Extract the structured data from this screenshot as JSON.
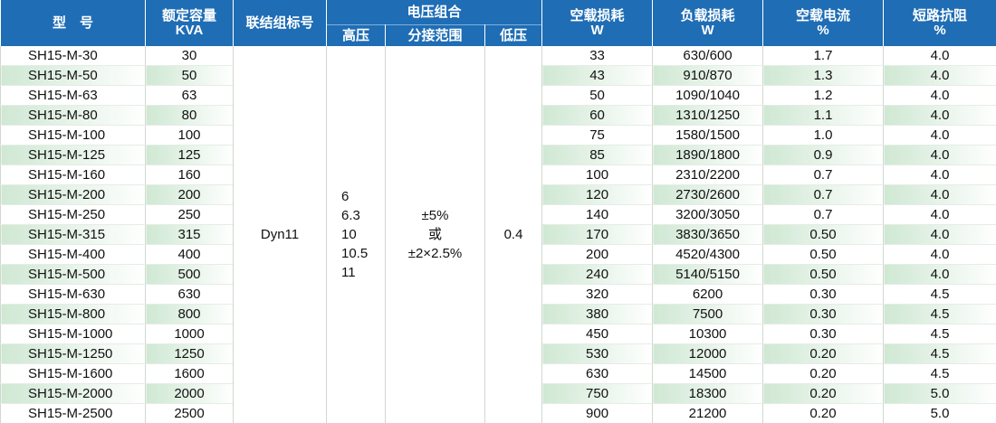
{
  "header": {
    "model": "型　号",
    "capacity": {
      "name": "额定容量",
      "unit": "KVA"
    },
    "connection": "联结组标号",
    "voltage": {
      "title": "电压组合",
      "high": "高压",
      "tap": "分接范围",
      "low": "低压"
    },
    "no_load_loss": {
      "name": "空载损耗",
      "unit": "W"
    },
    "load_loss": {
      "name": "负载损耗",
      "unit": "W"
    },
    "no_load_current": {
      "name": "空载电流",
      "unit": "%"
    },
    "impedance": {
      "name": "短路抗阻",
      "unit": "%"
    }
  },
  "merged": {
    "connection": "Dyn11",
    "high": [
      "6",
      "6.3",
      "10",
      "10.5",
      "11"
    ],
    "tap": [
      "±5%",
      "或",
      "±2×2.5%"
    ],
    "low": "0.4"
  },
  "rows": [
    [
      "SH15-M-30",
      "30",
      "33",
      "630/600",
      "1.7",
      "4.0"
    ],
    [
      "SH15-M-50",
      "50",
      "43",
      "910/870",
      "1.3",
      "4.0"
    ],
    [
      "SH15-M-63",
      "63",
      "50",
      "1090/1040",
      "1.2",
      "4.0"
    ],
    [
      "SH15-M-80",
      "80",
      "60",
      "1310/1250",
      "1.1",
      "4.0"
    ],
    [
      "SH15-M-100",
      "100",
      "75",
      "1580/1500",
      "1.0",
      "4.0"
    ],
    [
      "SH15-M-125",
      "125",
      "85",
      "1890/1800",
      "0.9",
      "4.0"
    ],
    [
      "SH15-M-160",
      "160",
      "100",
      "2310/2200",
      "0.7",
      "4.0"
    ],
    [
      "SH15-M-200",
      "200",
      "120",
      "2730/2600",
      "0.7",
      "4.0"
    ],
    [
      "SH15-M-250",
      "250",
      "140",
      "3200/3050",
      "0.7",
      "4.0"
    ],
    [
      "SH15-M-315",
      "315",
      "170",
      "3830/3650",
      "0.50",
      "4.0"
    ],
    [
      "SH15-M-400",
      "400",
      "200",
      "4520/4300",
      "0.50",
      "4.0"
    ],
    [
      "SH15-M-500",
      "500",
      "240",
      "5140/5150",
      "0.50",
      "4.0"
    ],
    [
      "SH15-M-630",
      "630",
      "320",
      "6200",
      "0.30",
      "4.5"
    ],
    [
      "SH15-M-800",
      "800",
      "380",
      "7500",
      "0.30",
      "4.5"
    ],
    [
      "SH15-M-1000",
      "1000",
      "450",
      "10300",
      "0.30",
      "4.5"
    ],
    [
      "SH15-M-1250",
      "1250",
      "530",
      "12000",
      "0.20",
      "4.5"
    ],
    [
      "SH15-M-1600",
      "1600",
      "630",
      "14500",
      "0.20",
      "4.5"
    ],
    [
      "SH15-M-2000",
      "2000",
      "750",
      "18300",
      "0.20",
      "5.0"
    ],
    [
      "SH15-M-2500",
      "2500",
      "900",
      "21200",
      "0.20",
      "5.0"
    ]
  ]
}
